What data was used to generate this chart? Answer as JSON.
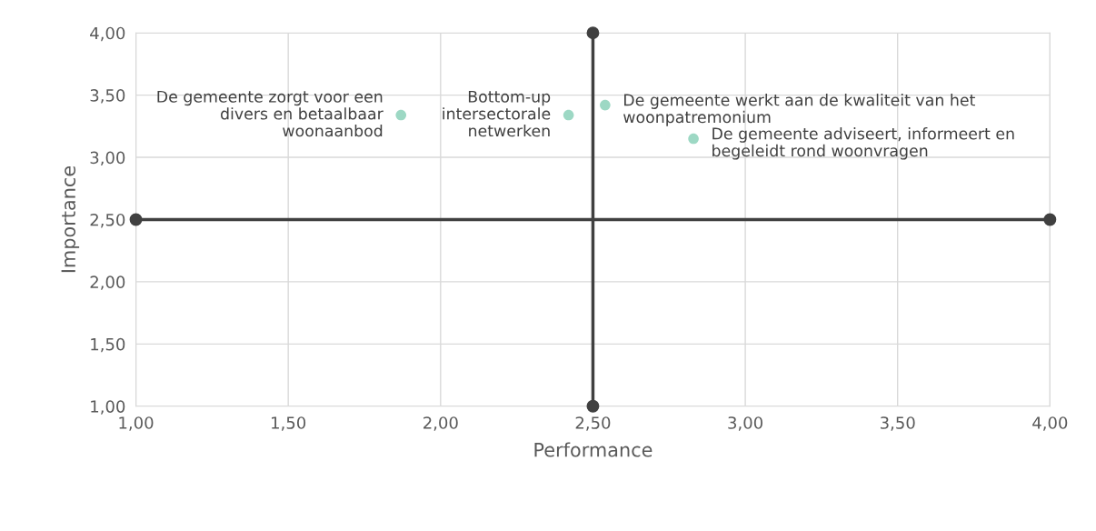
{
  "chart_data": {
    "type": "scatter",
    "xlabel": "Performance",
    "ylabel": "Importance",
    "series": [
      {
        "type": "line",
        "color": "#404040",
        "marker": "circle",
        "x": [
          1.0,
          4.0
        ],
        "values": [
          2.5,
          2.5
        ]
      },
      {
        "type": "line",
        "color": "#404040",
        "marker": "circle",
        "x": [
          2.5,
          2.5
        ],
        "values": [
          1.0,
          4.0
        ]
      },
      {
        "color": "#9dd8c4",
        "marker": "circle",
        "x": [
          1.87,
          2.42,
          2.54,
          2.83
        ],
        "values": [
          3.34,
          3.34,
          3.42,
          3.15
        ]
      }
    ],
    "annotations": [
      {
        "text": "De gemeente zorgt voor een\ndivers en betaalbaar\nwoonaanbod",
        "x": 1.87,
        "y": 3.34
      },
      {
        "text": "Bottom-up\nintersectorale\nnetwerken",
        "x": 2.42,
        "y": 3.34
      },
      {
        "text": "De gemeente werkt aan de kwaliteit van het\nwoonpatremonium",
        "x": 2.54,
        "y": 3.42
      },
      {
        "text": "De gemeente adviseert, informeert en\nbegeleidt rond woonvragen",
        "x": 2.83,
        "y": 3.15
      }
    ],
    "xlim": [
      1.0,
      4.0
    ],
    "ylim": [
      1.0,
      4.0
    ],
    "xticks": [
      {
        "value": 1.0,
        "label": "1,00"
      },
      {
        "value": 1.5,
        "label": "1,50"
      },
      {
        "value": 2.0,
        "label": "2,00"
      },
      {
        "value": 2.5,
        "label": "2,50"
      },
      {
        "value": 3.0,
        "label": "3,00"
      },
      {
        "value": 3.5,
        "label": "3,50"
      },
      {
        "value": 4.0,
        "label": "4,00"
      }
    ],
    "yticks": [
      {
        "value": 1.0,
        "label": "1,00"
      },
      {
        "value": 1.5,
        "label": "1,50"
      },
      {
        "value": 2.0,
        "label": "2,00"
      },
      {
        "value": 2.5,
        "label": "2,50"
      },
      {
        "value": 3.0,
        "label": "3,00"
      },
      {
        "value": 3.5,
        "label": "3,50"
      },
      {
        "value": 4.0,
        "label": "4,00"
      }
    ],
    "grid": true,
    "legend": false
  }
}
